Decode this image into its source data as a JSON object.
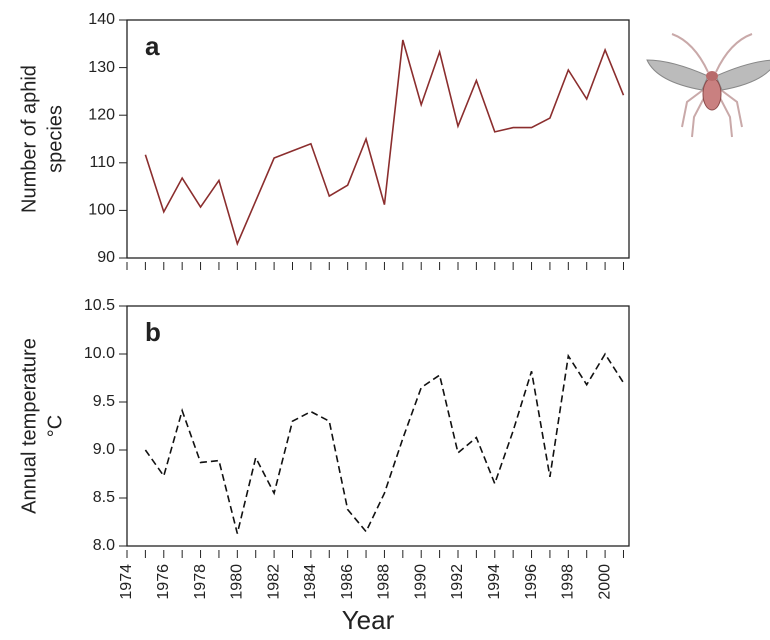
{
  "chart_data": [
    {
      "type": "line",
      "label": "a",
      "ylabel": [
        "Number of aphid",
        "species"
      ],
      "x": [
        1975,
        1976,
        1977,
        1978,
        1979,
        1980,
        1981,
        1982,
        1983,
        1984,
        1985,
        1986,
        1987,
        1988,
        1989,
        1990,
        1991,
        1992,
        1993,
        1994,
        1995,
        1996,
        1997,
        1998,
        1999,
        2000,
        2001
      ],
      "series": [
        {
          "color": "#8b2e2e",
          "dash": false,
          "values": [
            111.7,
            99.7,
            106.8,
            100.7,
            106.3,
            93,
            102,
            111,
            112.5,
            114,
            103,
            105.3,
            115,
            101.2,
            135.8,
            122.2,
            133.3,
            117.7,
            127.3,
            116.5,
            117.4,
            117.4,
            119.4,
            129.5,
            123.4,
            133.7,
            124.2
          ]
        }
      ],
      "xlim": [
        1974,
        2001.3
      ],
      "xticks": [
        1974,
        1976,
        1978,
        1980,
        1982,
        1984,
        1986,
        1988,
        1990,
        1992,
        1994,
        1996,
        1998,
        2000
      ],
      "xminorticks": [
        1975,
        1977,
        1979,
        1981,
        1983,
        1985,
        1987,
        1989,
        1991,
        1993,
        1995,
        1997,
        1999,
        2001
      ],
      "ylim": [
        90,
        140
      ],
      "yticks": [
        90,
        100,
        110,
        120,
        130,
        140
      ]
    },
    {
      "type": "line",
      "label": "b",
      "ylabel": [
        "Annual temperature",
        "°C"
      ],
      "xlabel": "Year",
      "x": [
        1975,
        1976,
        1977,
        1978,
        1979,
        1980,
        1981,
        1982,
        1983,
        1984,
        1985,
        1986,
        1987,
        1988,
        1989,
        1990,
        1991,
        1992,
        1993,
        1994,
        1995,
        1996,
        1997,
        1998,
        1999,
        2000,
        2001
      ],
      "series": [
        {
          "color": "#111111",
          "dash": true,
          "values": [
            9.0,
            8.73,
            9.41,
            8.87,
            8.89,
            8.13,
            8.92,
            8.55,
            9.3,
            9.4,
            9.3,
            8.38,
            8.15,
            8.55,
            9.12,
            9.65,
            9.78,
            8.97,
            9.13,
            8.65,
            9.2,
            9.82,
            8.72,
            9.98,
            9.68,
            10.0,
            9.7
          ]
        }
      ],
      "xlim": [
        1974,
        2001.3
      ],
      "xticks": [
        1974,
        1976,
        1978,
        1980,
        1982,
        1984,
        1986,
        1988,
        1990,
        1992,
        1994,
        1996,
        1998,
        2000
      ],
      "xminorticks": [
        1975,
        1977,
        1979,
        1981,
        1983,
        1985,
        1987,
        1989,
        1991,
        1993,
        1995,
        1997,
        1999,
        2001
      ],
      "ylim": [
        8,
        10.5
      ],
      "yticks": [
        {
          "value": 8,
          "label": "8.0"
        },
        {
          "value": 8.5,
          "label": "8.5"
        },
        {
          "value": 9,
          "label": "9.0"
        },
        {
          "value": 9.5,
          "label": "9.5"
        },
        {
          "value": 10,
          "label": "10.0"
        },
        {
          "value": 10.5,
          "label": "10.5"
        }
      ]
    }
  ]
}
